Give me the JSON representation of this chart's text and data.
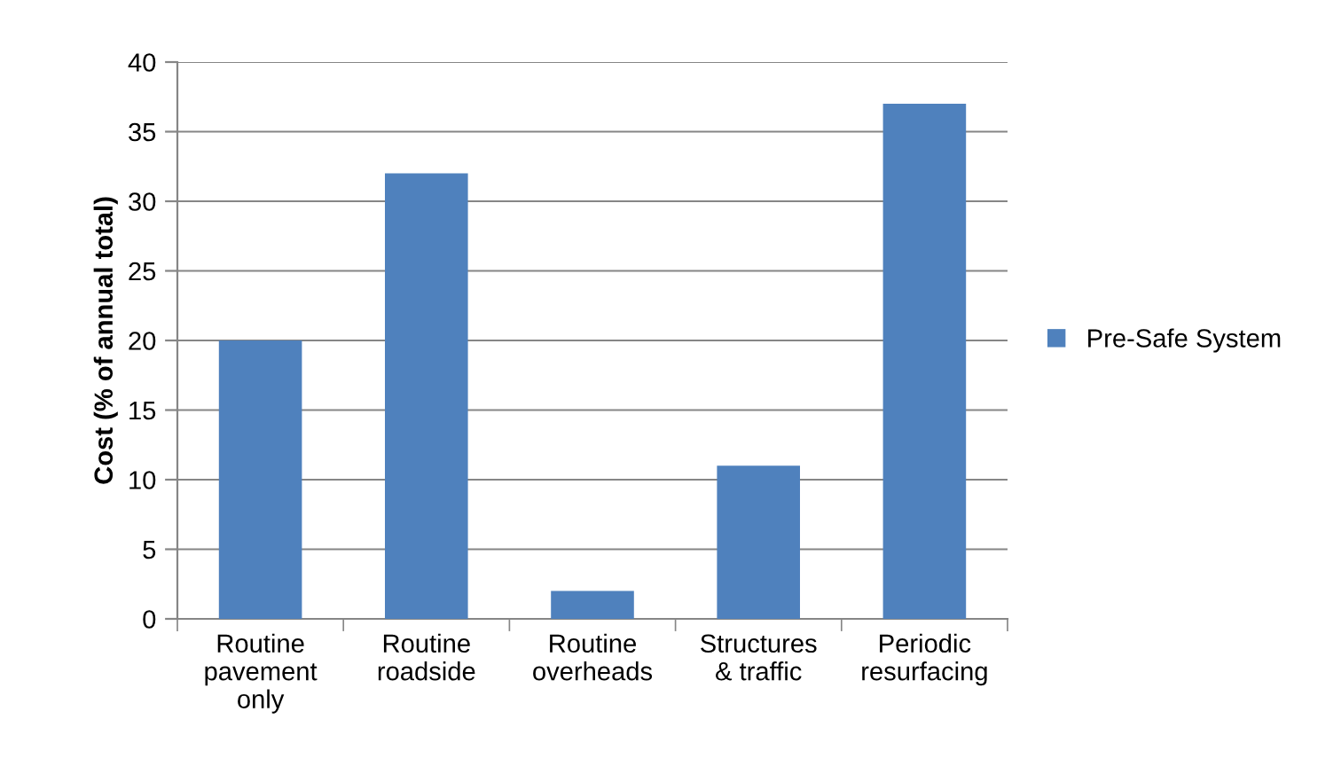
{
  "chart_data": {
    "type": "bar",
    "ylabel": "Cost (% of annual total)",
    "categories": [
      "Routine pavement only",
      "Routine roadside",
      "Routine overheads",
      "Structures & traffic",
      "Periodic resurfacing"
    ],
    "series": [
      {
        "name": "Pre-Safe System",
        "color": "#4f81bd",
        "values": [
          20,
          32,
          2,
          11,
          37
        ]
      }
    ],
    "ylim": [
      0,
      40
    ],
    "yticks": [
      0,
      5,
      10,
      15,
      20,
      25,
      30,
      35,
      40
    ],
    "grid": "y",
    "legend": "right"
  }
}
